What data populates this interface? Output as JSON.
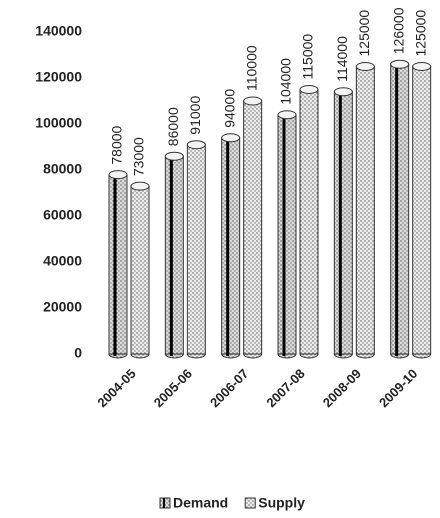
{
  "chart_data": {
    "type": "bar",
    "categories": [
      "2004-05",
      "2005-06",
      "2006-07",
      "2007-08",
      "2008-09",
      "2009-10"
    ],
    "series": [
      {
        "name": "Demand",
        "color": "#d9d9d9",
        "values": [
          78000,
          86000,
          94000,
          104000,
          114000,
          126000
        ]
      },
      {
        "name": "Supply",
        "color": "#ececec",
        "values": [
          73000,
          91000,
          110000,
          115000,
          125000,
          125000
        ]
      }
    ],
    "ylim": [
      0,
      140000
    ],
    "yticks": [
      0,
      20000,
      40000,
      60000,
      80000,
      100000,
      120000,
      140000
    ],
    "grid": false,
    "legend": "bottom"
  }
}
